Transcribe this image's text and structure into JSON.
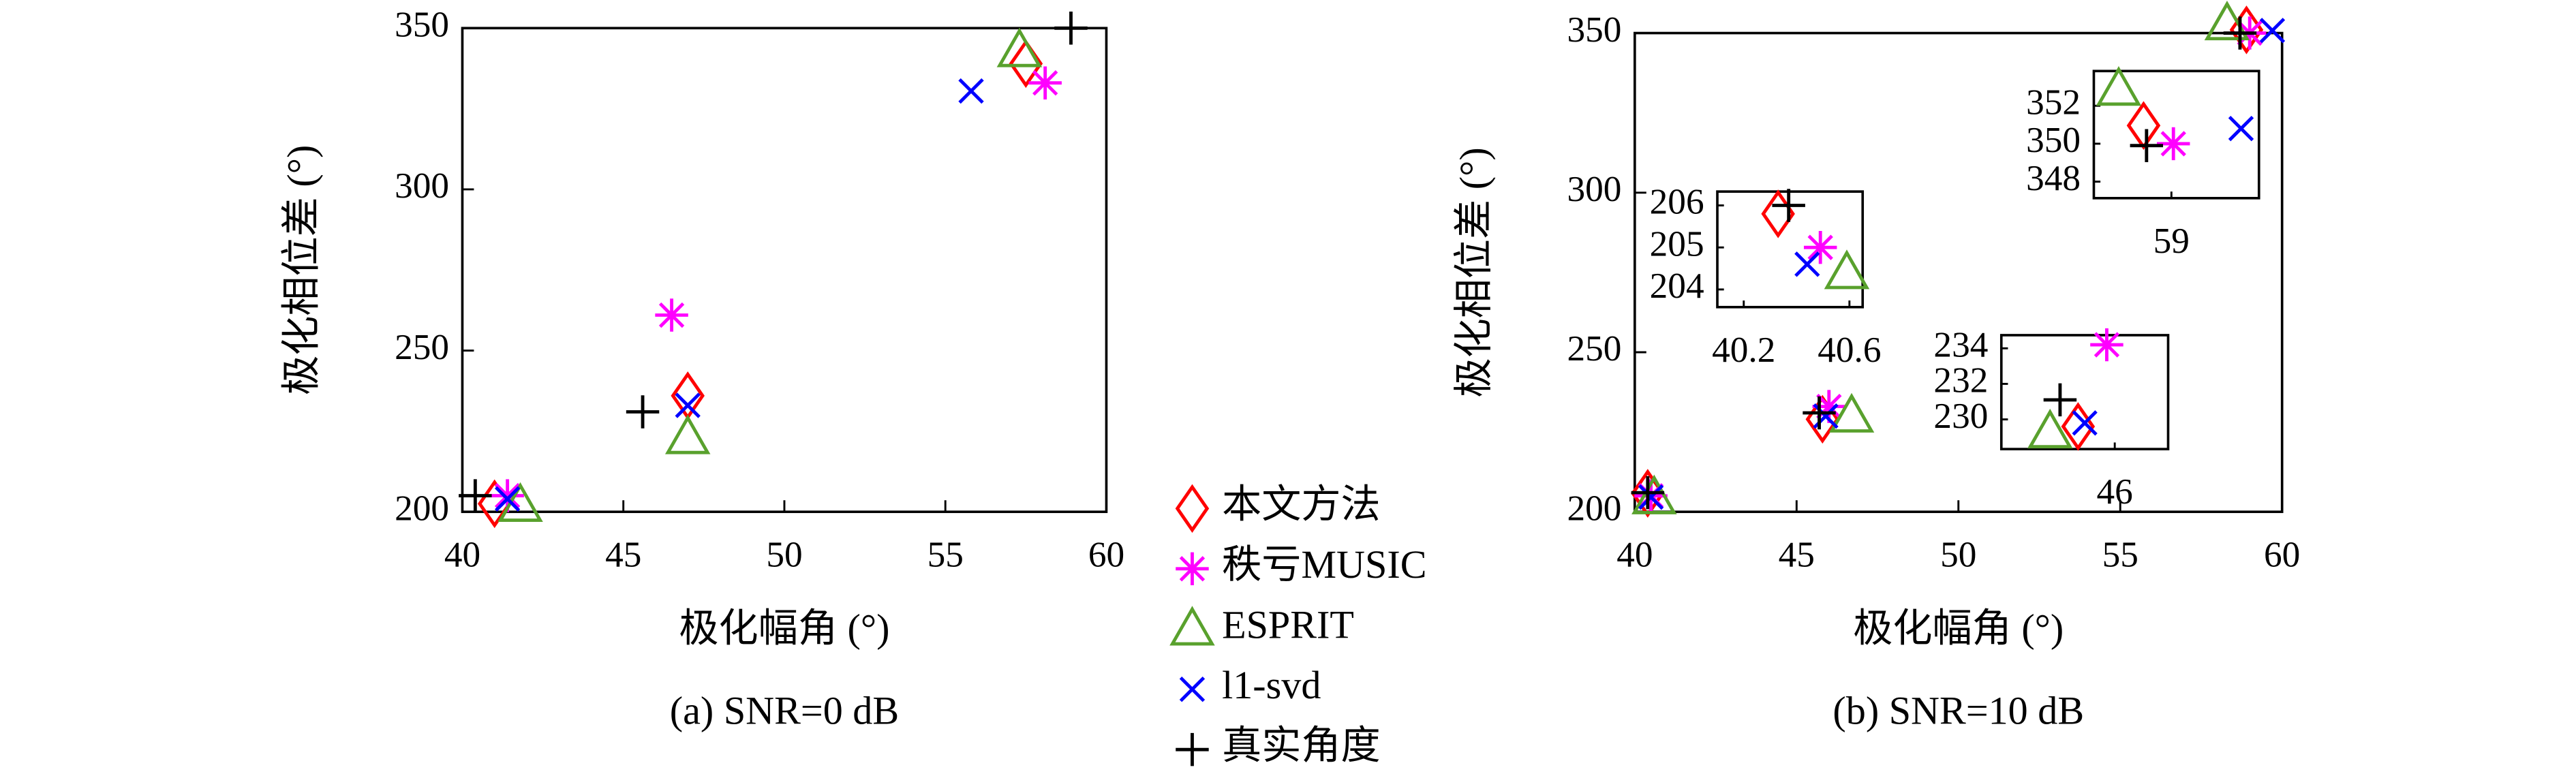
{
  "chart_data": [
    {
      "type": "scatter",
      "xlabel": "极化幅角 (°)",
      "ylabel": "极化相位差 (°)",
      "caption": "(a) SNR=0 dB",
      "xlim": [
        40,
        60
      ],
      "ylim": [
        200,
        350
      ],
      "xticks": [
        40,
        45,
        50,
        55,
        60
      ],
      "yticks": [
        200,
        250,
        300,
        350
      ],
      "series": [
        {
          "name": "本文方法",
          "color": "#ff0000",
          "marker": "diamond",
          "x": [
            41.0,
            47.0,
            57.5
          ],
          "values": [
            202.5,
            236,
            339
          ]
        },
        {
          "name": "秩亏MUSIC",
          "color": "#ff00ff",
          "marker": "asterisk",
          "x": [
            41.4,
            46.5,
            58.1
          ],
          "values": [
            205,
            261,
            333
          ]
        },
        {
          "name": "ESPRIT",
          "color": "#59a12d",
          "marker": "triangle",
          "x": [
            41.8,
            47.0,
            57.3
          ],
          "values": [
            202,
            223,
            343
          ]
        },
        {
          "name": "l1-svd",
          "color": "#0000ff",
          "marker": "x",
          "x": [
            41.4,
            47.0,
            55.8
          ],
          "values": [
            204,
            233,
            330.5
          ]
        },
        {
          "name": "真实角度",
          "color": "#000000",
          "marker": "plus",
          "x": [
            40.4,
            45.6,
            58.9
          ],
          "values": [
            205,
            231,
            350
          ]
        }
      ]
    },
    {
      "type": "scatter",
      "xlabel": "极化幅角 (°)",
      "ylabel": "极化相位差 (°)",
      "caption": "(b) SNR=10 dB",
      "xlim": [
        40,
        60
      ],
      "ylim": [
        200,
        350
      ],
      "xticks": [
        40,
        45,
        50,
        55,
        60
      ],
      "yticks": [
        200,
        250,
        300,
        350
      ],
      "series": [
        {
          "color": "#ff0000",
          "marker": "diamond",
          "x": [
            40.4,
            45.8,
            58.9
          ],
          "values": [
            205.8,
            229,
            351
          ]
        },
        {
          "color": "#ff00ff",
          "marker": "asterisk",
          "x": [
            40.5,
            46.0,
            59.0
          ],
          "values": [
            205,
            233,
            350
          ]
        },
        {
          "color": "#59a12d",
          "marker": "triangle",
          "x": [
            40.6,
            46.7,
            58.3
          ],
          "values": [
            204.4,
            230,
            352.9
          ]
        },
        {
          "color": "#0000ff",
          "marker": "x",
          "x": [
            40.5,
            45.9,
            59.7
          ],
          "values": [
            204.6,
            230,
            350.8
          ]
        },
        {
          "color": "#000000",
          "marker": "plus",
          "x": [
            40.4,
            45.7,
            58.7
          ],
          "values": [
            206,
            231,
            350
          ]
        }
      ]
    },
    {
      "type": "scatter",
      "xlim": [
        40.1,
        40.65
      ],
      "ylim": [
        203.58,
        206.33
      ],
      "xticks": [
        40.2,
        40.6
      ],
      "yticks": [
        204,
        205,
        206
      ],
      "series": [
        {
          "color": "#ff0000",
          "marker": "diamond",
          "x": [
            40.33
          ],
          "values": [
            205.8
          ]
        },
        {
          "color": "#ff00ff",
          "marker": "asterisk",
          "x": [
            40.49
          ],
          "values": [
            205.0
          ]
        },
        {
          "color": "#59a12d",
          "marker": "triangle",
          "x": [
            40.59
          ],
          "values": [
            204.4
          ]
        },
        {
          "color": "#0000ff",
          "marker": "x",
          "x": [
            40.44
          ],
          "values": [
            204.6
          ]
        },
        {
          "color": "#000000",
          "marker": "plus",
          "x": [
            40.37
          ],
          "values": [
            206.0
          ]
        }
      ]
    },
    {
      "type": "scatter",
      "xlim": [
        44.3,
        46.8
      ],
      "ylim": [
        228.33,
        234.74
      ],
      "xticks": [
        46
      ],
      "yticks": [
        230,
        232,
        234
      ],
      "series": [
        {
          "color": "#ff0000",
          "marker": "diamond",
          "x": [
            45.45
          ],
          "values": [
            229.6
          ]
        },
        {
          "color": "#ff00ff",
          "marker": "asterisk",
          "x": [
            45.88
          ],
          "values": [
            234.2
          ]
        },
        {
          "color": "#59a12d",
          "marker": "triangle",
          "x": [
            45.03
          ],
          "values": [
            229.3
          ]
        },
        {
          "color": "#0000ff",
          "marker": "x",
          "x": [
            45.55
          ],
          "values": [
            229.8
          ]
        },
        {
          "color": "#000000",
          "marker": "plus",
          "x": [
            45.18
          ],
          "values": [
            231.1
          ]
        }
      ]
    },
    {
      "type": "scatter",
      "xlim": [
        58.22,
        59.88
      ],
      "ylim": [
        347.13,
        353.83
      ],
      "xticks": [
        59
      ],
      "yticks": [
        348,
        350,
        352
      ],
      "series": [
        {
          "color": "#ff0000",
          "marker": "diamond",
          "x": [
            58.72
          ],
          "values": [
            350.96
          ]
        },
        {
          "color": "#ff00ff",
          "marker": "asterisk",
          "x": [
            59.02
          ],
          "values": [
            350
          ]
        },
        {
          "color": "#59a12d",
          "marker": "triangle",
          "x": [
            58.47
          ],
          "values": [
            352.87
          ]
        },
        {
          "color": "#0000ff",
          "marker": "x",
          "x": [
            59.7
          ],
          "values": [
            350.8
          ]
        },
        {
          "color": "#000000",
          "marker": "plus",
          "x": [
            58.75
          ],
          "values": [
            349.9
          ]
        }
      ]
    }
  ]
}
